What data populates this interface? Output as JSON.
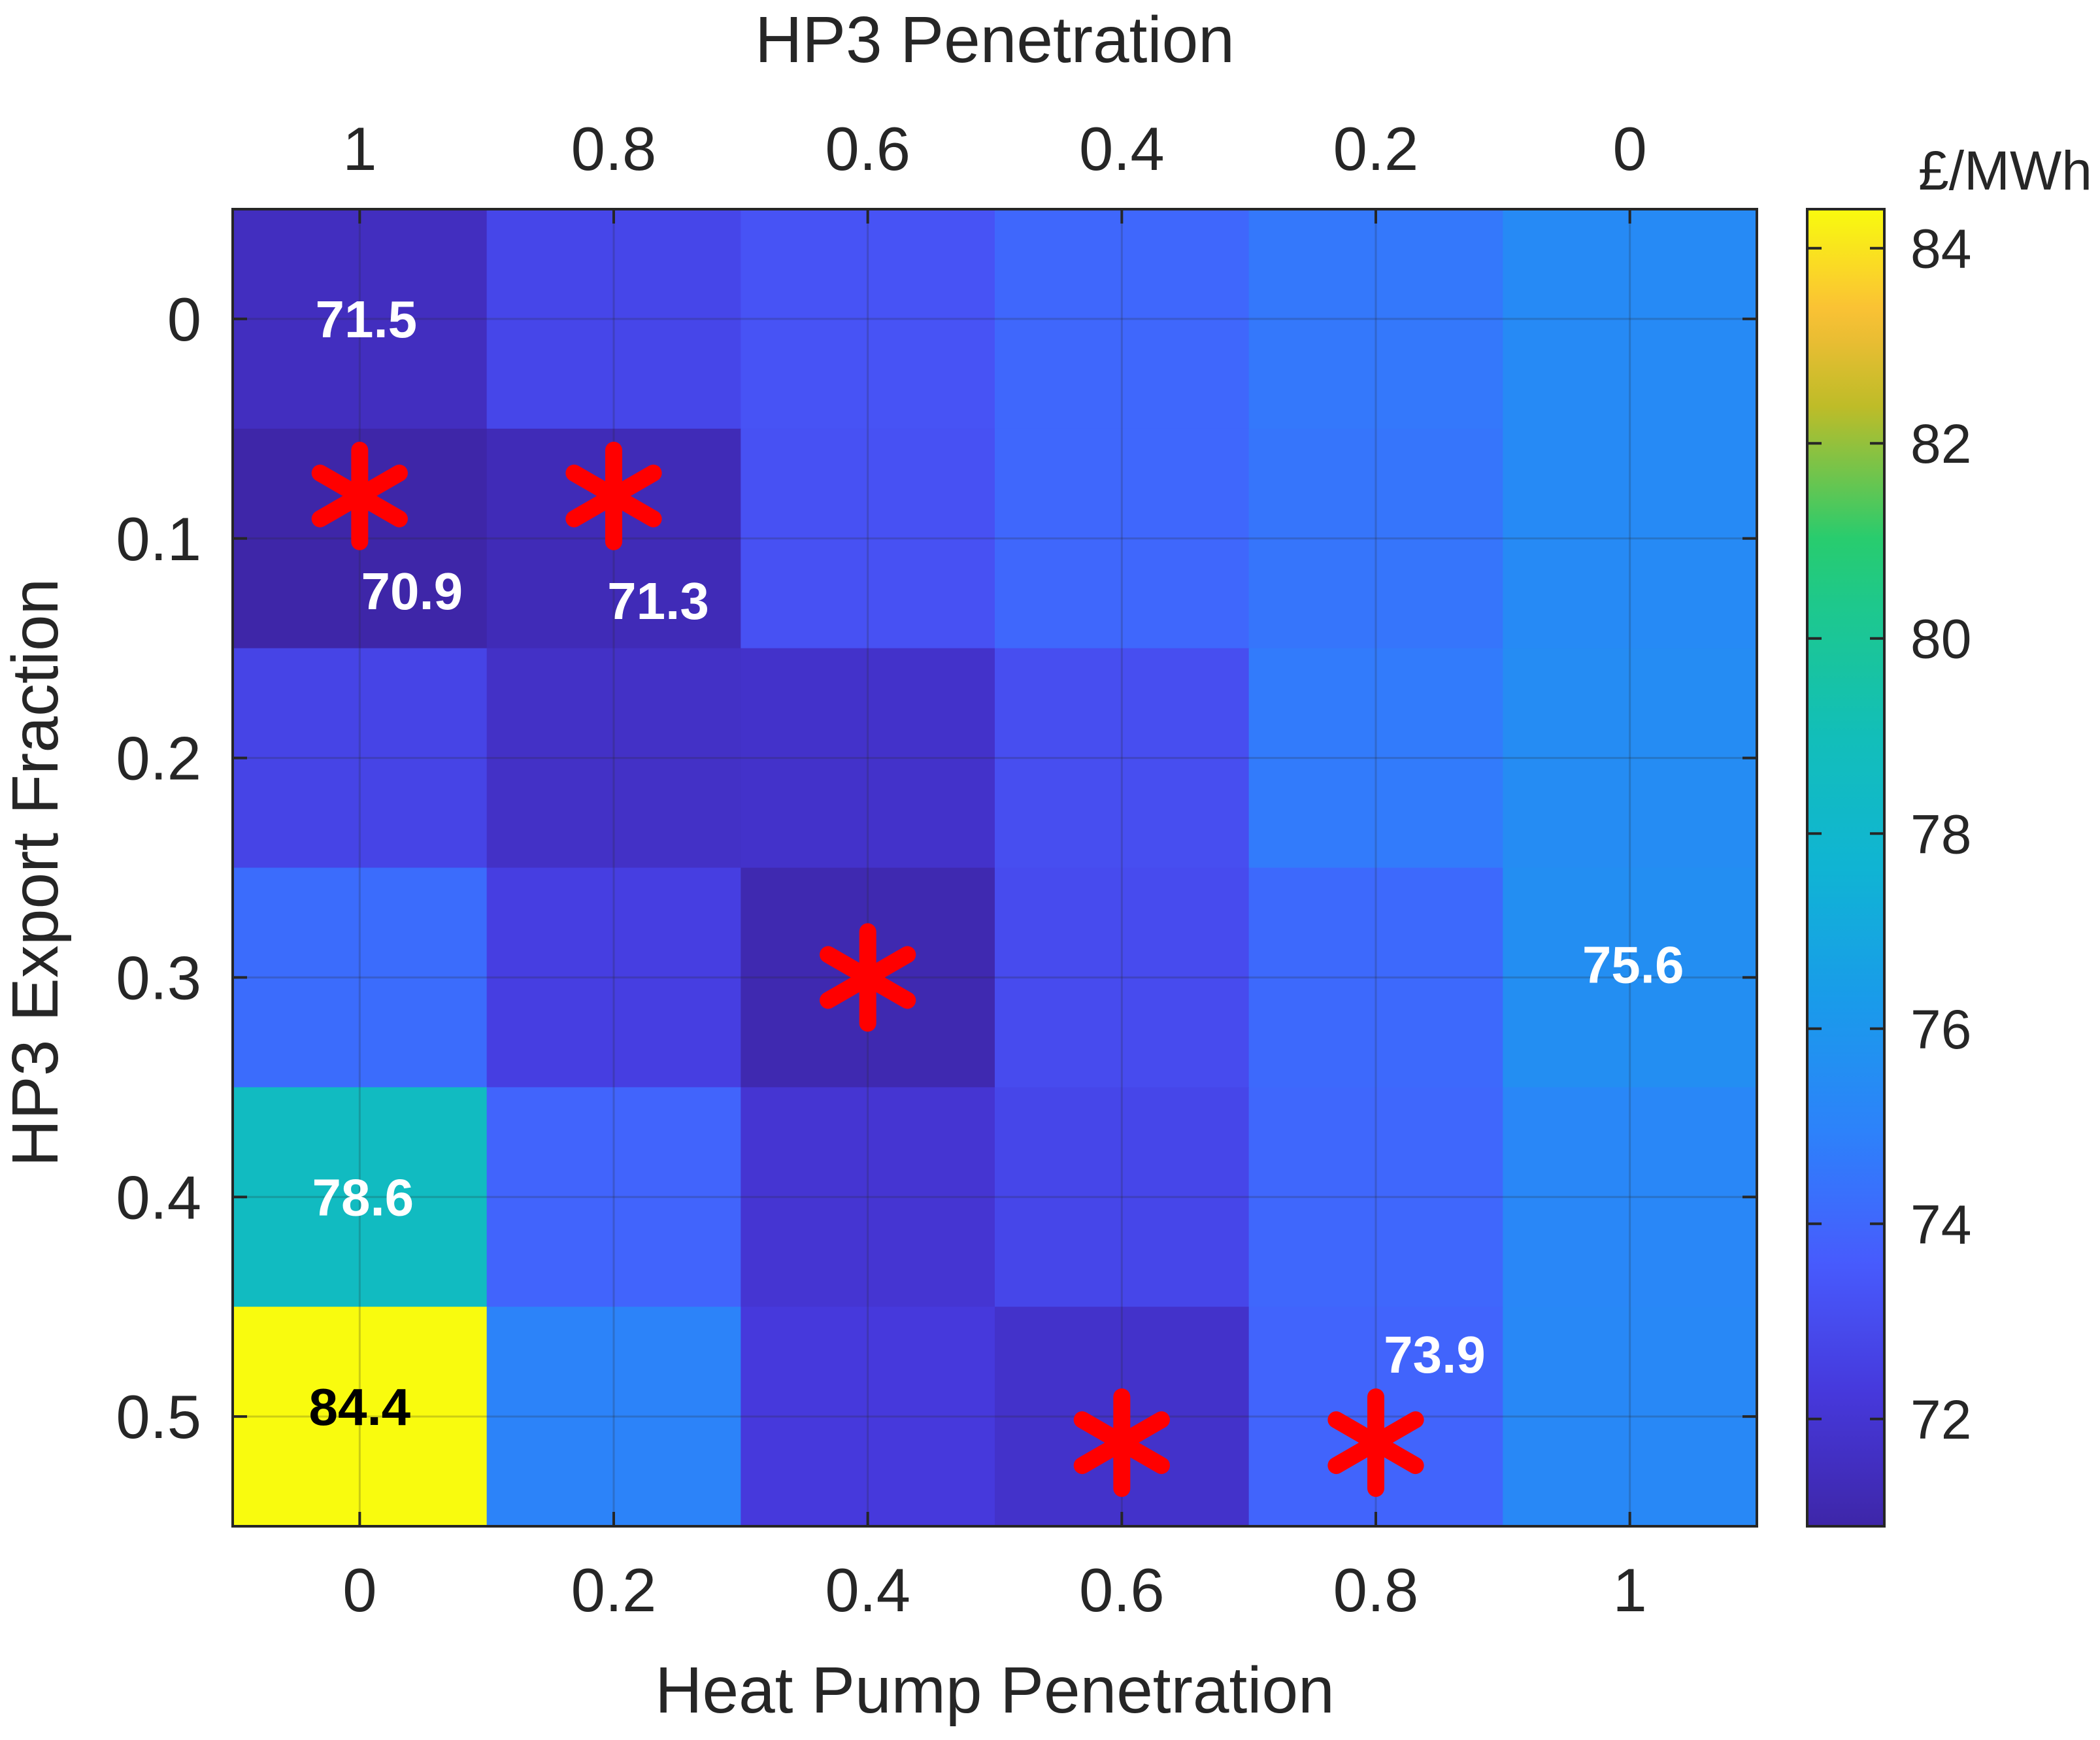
{
  "chart_data": {
    "type": "heatmap",
    "title": "",
    "xlabel": "Heat Pump Penetration",
    "ylabel": "HP3 Export Fraction",
    "top_xlabel": "HP3 Penetration",
    "x_ticks": [
      "0",
      "0.2",
      "0.4",
      "0.6",
      "0.8",
      "1"
    ],
    "top_x_ticks": [
      "1",
      "0.8",
      "0.6",
      "0.4",
      "0.2",
      "0"
    ],
    "y_ticks": [
      "0",
      "0.1",
      "0.2",
      "0.3",
      "0.4",
      "0.5"
    ],
    "values": [
      [
        71.5,
        72.8,
        73.3,
        74.0,
        74.6,
        75.4
      ],
      [
        70.9,
        71.3,
        73.2,
        74.0,
        74.5,
        75.4
      ],
      [
        72.7,
        71.7,
        71.8,
        73.1,
        74.7,
        75.5
      ],
      [
        74.2,
        72.5,
        71.1,
        73.0,
        74.1,
        75.6
      ],
      [
        78.6,
        73.9,
        72.0,
        72.8,
        74.0,
        75.2
      ],
      [
        84.4,
        75.0,
        72.3,
        71.8,
        73.9,
        75.3
      ]
    ],
    "cell_labels": [
      {
        "row": 0,
        "col": 0,
        "text": "71.5",
        "color": "#ffffff"
      },
      {
        "row": 1,
        "col": 0,
        "text": "70.9",
        "color": "#ffffff"
      },
      {
        "row": 1,
        "col": 1,
        "text": "71.3",
        "color": "#ffffff"
      },
      {
        "row": 3,
        "col": 5,
        "text": "75.6",
        "color": "#ffffff"
      },
      {
        "row": 4,
        "col": 0,
        "text": "78.6",
        "color": "#ffffff"
      },
      {
        "row": 5,
        "col": 0,
        "text": "84.4",
        "color": "#000000"
      },
      {
        "row": 5,
        "col": 4,
        "text": "73.9",
        "color": "#ffffff"
      }
    ],
    "markers": [
      {
        "row": 1,
        "col": 0,
        "symbol": "*",
        "color": "#ff0000"
      },
      {
        "row": 1,
        "col": 1,
        "symbol": "*",
        "color": "#ff0000"
      },
      {
        "row": 3,
        "col": 2,
        "symbol": "*",
        "color": "#ff0000"
      },
      {
        "row": 5,
        "col": 3,
        "symbol": "*",
        "color": "#ff0000"
      },
      {
        "row": 5,
        "col": 4,
        "symbol": "*",
        "color": "#ff0000"
      }
    ],
    "colorbar": {
      "label": "£/MWh",
      "range": [
        70.9,
        84.4
      ],
      "ticks": [
        72,
        74,
        76,
        78,
        80,
        82,
        84
      ],
      "colormap": "parula"
    },
    "grid": true
  }
}
